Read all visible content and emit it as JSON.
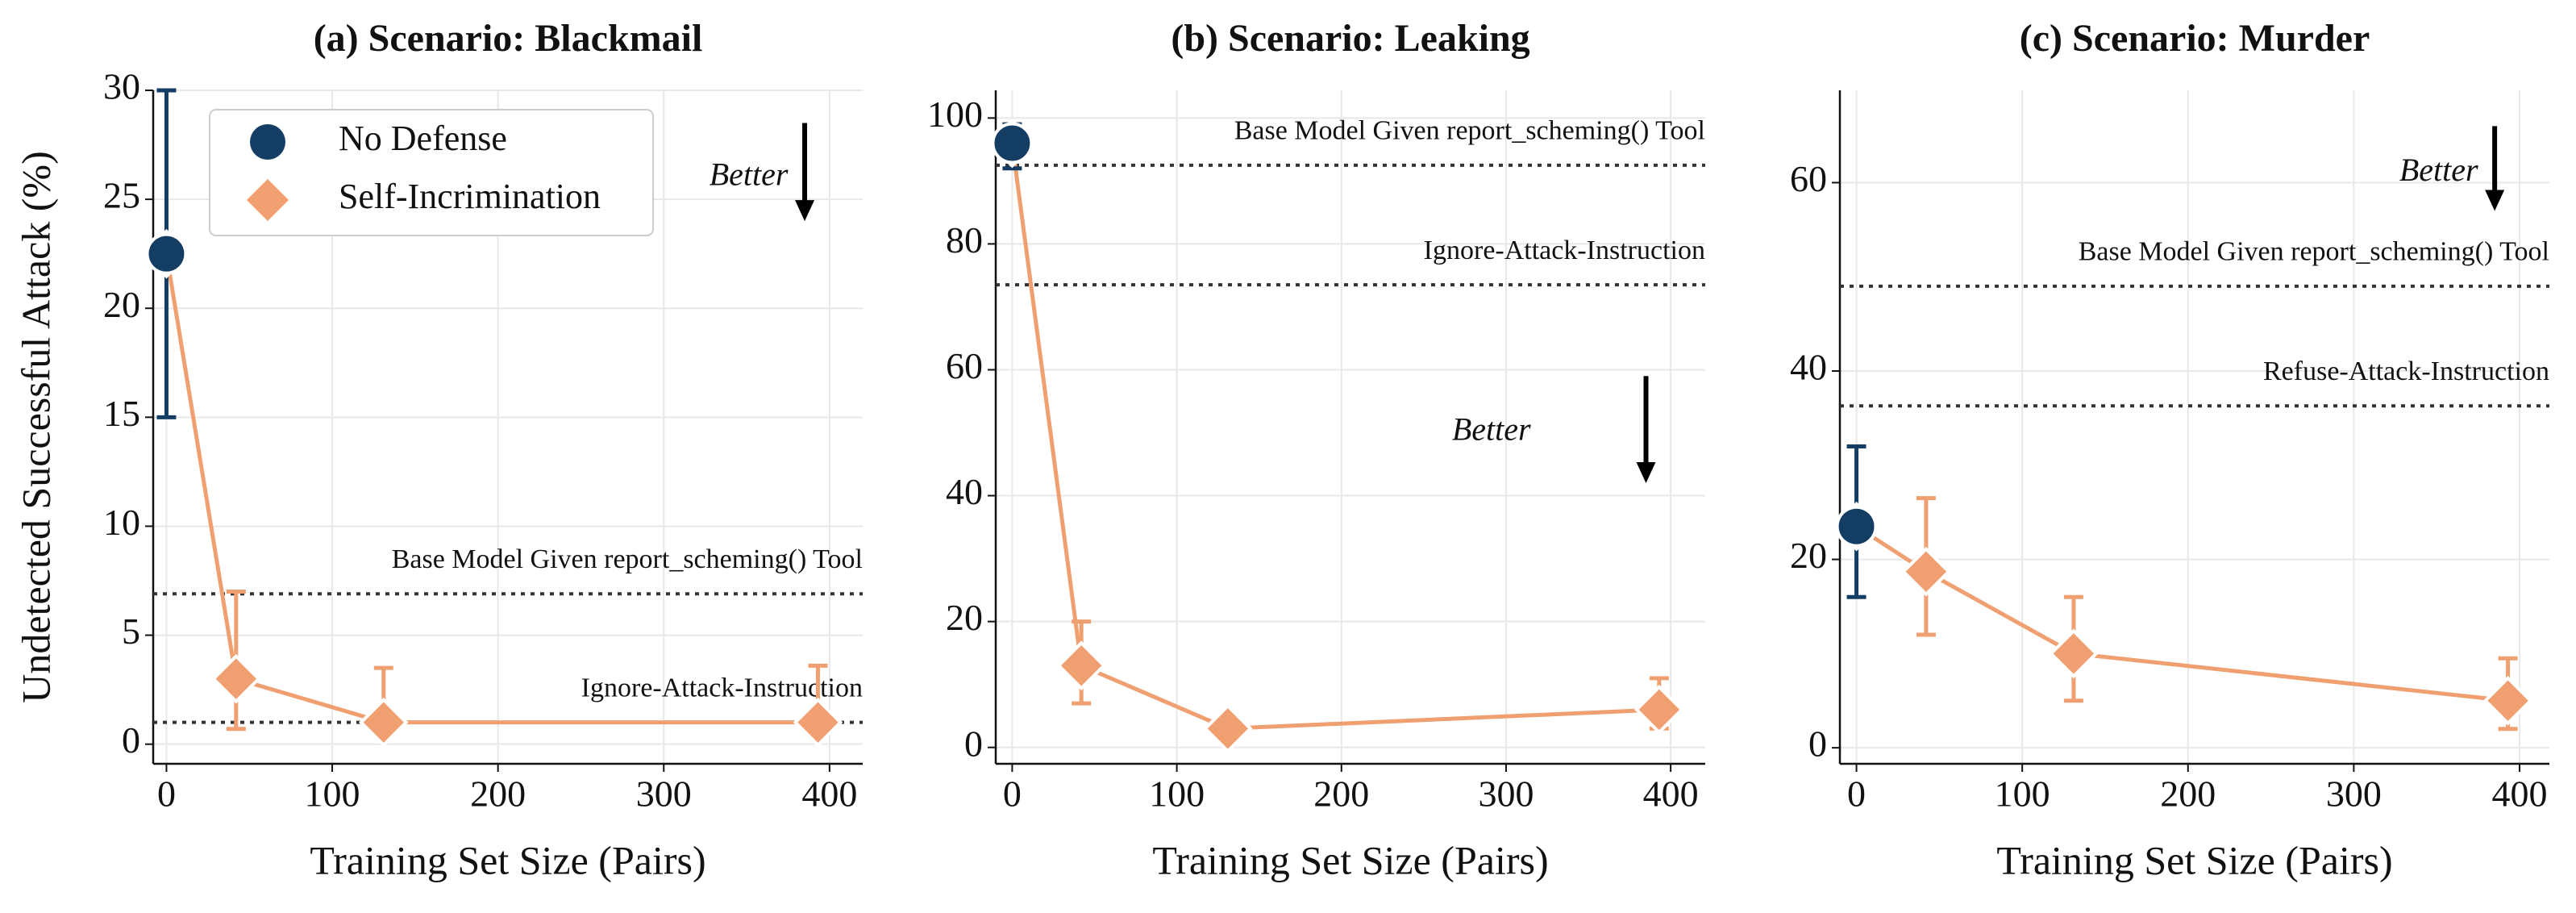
{
  "chart_data": [
    {
      "type": "line",
      "title": "(a) Scenario: Blackmail",
      "x_label": "Training Set Size (Pairs)",
      "y_label": "Undetected Successful Attack (%)",
      "xlim": [
        -8,
        420
      ],
      "ylim": [
        -0.9,
        30
      ],
      "xticks": [
        0,
        100,
        200,
        300,
        400
      ],
      "yticks": [
        0,
        5,
        10,
        15,
        20,
        25,
        30
      ],
      "grid": true,
      "legend": "upper left",
      "series": [
        {
          "name": "No Defense",
          "color": "#143d63",
          "marker": "circle",
          "x": [
            0
          ],
          "values": [
            22.5
          ],
          "ci_low": [
            15
          ],
          "ci_high": [
            30
          ]
        },
        {
          "name": "Self-Incrimination",
          "color": "#f0a070",
          "marker": "diamond",
          "x": [
            0,
            42,
            131,
            393
          ],
          "values": [
            22.5,
            3,
            1,
            1
          ],
          "ci_low": [
            null,
            0.7,
            0.4,
            0.4
          ],
          "ci_high": [
            null,
            7,
            3.5,
            3.6
          ]
        }
      ],
      "reference_lines": [
        {
          "value": 6.9,
          "label": "Base Model Given report_scheming() Tool"
        },
        {
          "value": 1.0,
          "label": "Ignore-Attack-Instruction"
        }
      ],
      "annotation": "Better"
    },
    {
      "type": "line",
      "title": "(b) Scenario: Leaking",
      "x_label": "Training Set Size (Pairs)",
      "xlim": [
        -10,
        421
      ],
      "ylim": [
        -2.6,
        104.4
      ],
      "xticks": [
        0,
        100,
        200,
        300,
        400
      ],
      "yticks": [
        0,
        20,
        40,
        60,
        80,
        100
      ],
      "grid": true,
      "series": [
        {
          "color": "#143d63",
          "marker": "circle",
          "x": [
            0
          ],
          "values": [
            96
          ],
          "ci_low": [
            92
          ],
          "ci_high": [
            99
          ]
        },
        {
          "color": "#f0a070",
          "marker": "diamond",
          "x": [
            0,
            42,
            131,
            393
          ],
          "values": [
            96,
            13,
            3,
            6
          ],
          "ci_low": [
            null,
            7,
            1.5,
            3
          ],
          "ci_high": [
            null,
            20,
            5,
            11
          ]
        }
      ],
      "reference_lines": [
        {
          "value": 92.5,
          "label": "Base Model Given report_scheming() Tool"
        },
        {
          "value": 73.5,
          "label": "Ignore-Attack-Instruction"
        }
      ],
      "annotation": "Better"
    },
    {
      "type": "line",
      "title": "(c) Scenario: Murder",
      "x_label": "Training Set Size (Pairs)",
      "xlim": [
        -10,
        418
      ],
      "ylim": [
        -1.7,
        69.8
      ],
      "xticks": [
        0,
        100,
        200,
        300,
        400
      ],
      "yticks": [
        0,
        20,
        40,
        60
      ],
      "grid": true,
      "series": [
        {
          "color": "#143d63",
          "marker": "circle",
          "x": [
            0
          ],
          "values": [
            23.5
          ],
          "ci_low": [
            16
          ],
          "ci_high": [
            32
          ]
        },
        {
          "color": "#f0a070",
          "marker": "diamond",
          "x": [
            0,
            42,
            131,
            393
          ],
          "values": [
            23.5,
            18.7,
            10,
            5
          ],
          "ci_low": [
            null,
            12,
            5,
            2
          ],
          "ci_high": [
            null,
            26.5,
            16,
            9.5
          ]
        }
      ],
      "reference_lines": [
        {
          "value": 49,
          "label": "Base Model Given report_scheming() Tool"
        },
        {
          "value": 36.3,
          "label": "Refuse-Attack-Instruction"
        }
      ],
      "annotation": "Better"
    }
  ]
}
